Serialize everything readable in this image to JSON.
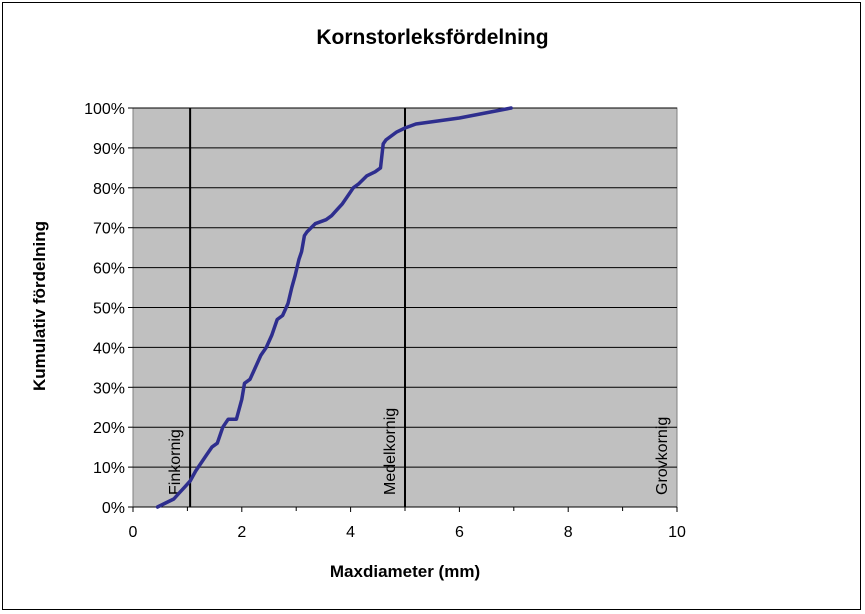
{
  "chart_data": {
    "type": "line",
    "title": "Kornstorleksfördelning",
    "xlabel": "Maxdiameter (mm)",
    "ylabel": "Kumulativ fördelning",
    "xlim": [
      0,
      10
    ],
    "ylim": [
      0,
      100
    ],
    "x_ticks": [
      "0",
      "2",
      "4",
      "6",
      "8",
      "10"
    ],
    "y_ticks": [
      "0%",
      "10%",
      "20%",
      "30%",
      "40%",
      "50%",
      "60%",
      "70%",
      "80%",
      "90%",
      "100%"
    ],
    "grid": "horizontal",
    "colors": {
      "plot_bg": "#c0c0c0",
      "line": "#2e2e8e",
      "grid": "#000000"
    },
    "series": [
      {
        "x": [
          0.45,
          0.6,
          0.75,
          0.85,
          0.95,
          1.05,
          1.15,
          1.25,
          1.35,
          1.45,
          1.55,
          1.65,
          1.75,
          1.9,
          2.0,
          2.05,
          2.15,
          2.25,
          2.35,
          2.45,
          2.55,
          2.65,
          2.75,
          2.85,
          2.92,
          2.98,
          3.05,
          3.1,
          3.15,
          3.2,
          3.35,
          3.55,
          3.65,
          3.75,
          3.85,
          3.95,
          4.05,
          4.15,
          4.3,
          4.45,
          4.55,
          4.6,
          4.65,
          4.75,
          4.85,
          5.0,
          5.2,
          6.0,
          6.95
        ],
        "y": [
          0,
          1,
          2,
          3.5,
          5,
          6.5,
          9,
          11,
          13,
          15,
          16,
          20,
          22,
          22,
          27,
          31,
          32,
          35,
          38,
          40,
          43,
          47,
          48,
          51,
          55,
          58,
          62,
          64,
          68,
          69,
          71,
          72,
          73,
          74.5,
          76,
          78,
          80,
          81,
          83,
          84,
          85,
          91,
          92,
          93,
          94,
          95,
          96,
          97.5,
          100
        ]
      }
    ],
    "annotations": [
      {
        "label": "Finkornig",
        "x": 1.05
      },
      {
        "label": "Medelkornig",
        "x": 5.0
      },
      {
        "label": "Grovkornig",
        "x": 10
      }
    ]
  }
}
